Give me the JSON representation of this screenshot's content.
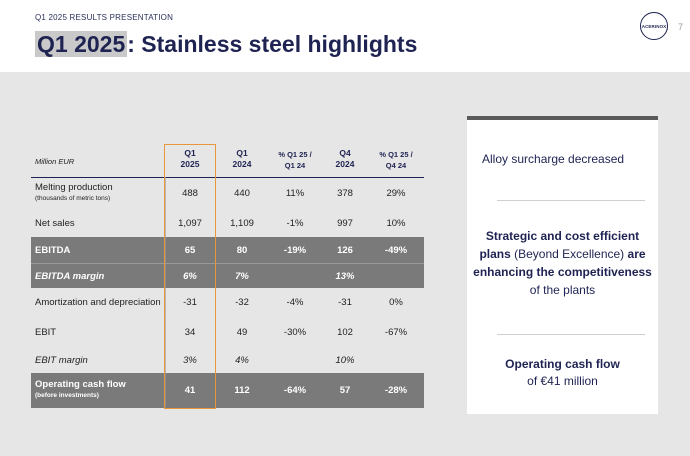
{
  "header": {
    "kicker": "Q1 2025 RESULTS PRESENTATION",
    "title_highlight": "Q1 2025",
    "title_rest": ": Stainless steel highlights",
    "logo_text": "ACERINOX",
    "page_number": "7"
  },
  "table": {
    "unit_label": "Million EUR",
    "columns": [
      {
        "line1": "Q1",
        "line2": "2025"
      },
      {
        "line1": "Q1",
        "line2": "2024"
      },
      {
        "line1": "% Q1 25 /",
        "line2": "Q1 24"
      },
      {
        "line1": "Q4",
        "line2": "2024"
      },
      {
        "line1": "% Q1 25 /",
        "line2": "Q4 24"
      }
    ],
    "rows": [
      {
        "label": "Melting production",
        "sublabel": "(thousands of metric tons)",
        "values": [
          "488",
          "440",
          "11%",
          "378",
          "29%"
        ]
      },
      {
        "label": "Net sales",
        "values": [
          "1,097",
          "1,109",
          "-1%",
          "997",
          "10%"
        ]
      },
      {
        "label": "EBITDA",
        "values": [
          "65",
          "80",
          "-19%",
          "126",
          "-49%"
        ]
      },
      {
        "label": "EBITDA margin",
        "values": [
          "6%",
          "7%",
          "",
          "13%",
          ""
        ]
      },
      {
        "label": "Amortization and depreciation",
        "values": [
          "-31",
          "-32",
          "-4%",
          "-31",
          "0%"
        ]
      },
      {
        "label": "EBIT",
        "values": [
          "34",
          "49",
          "-30%",
          "102",
          "-67%"
        ]
      },
      {
        "label": "EBIT margin",
        "values": [
          "3%",
          "4%",
          "",
          "10%",
          ""
        ]
      },
      {
        "label": "Operating cash flow",
        "sublabel": "(before investments)",
        "values": [
          "41",
          "112",
          "-64%",
          "57",
          "-28%"
        ]
      }
    ]
  },
  "card": {
    "text1": "Alloy surcharge decreased",
    "text2_a": "Strategic and cost efficient plans",
    "text2_b": " (Beyond Excellence) ",
    "text2_c": "are enhancing the competitiveness",
    "text2_d": " of the plants",
    "text3_a": "Operating cash flow",
    "text3_b": "of €41 million"
  }
}
